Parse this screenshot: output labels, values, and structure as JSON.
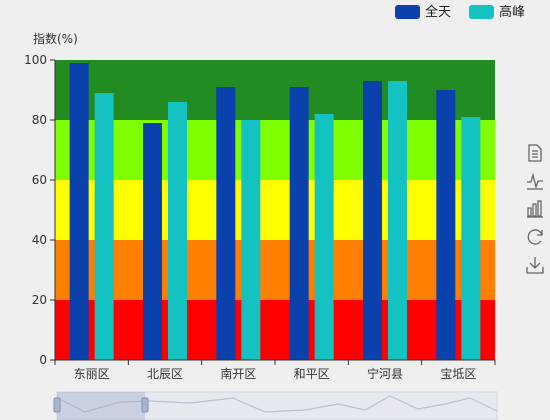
{
  "chart_data": {
    "type": "bar",
    "ylabel": "指数(%)",
    "ylim": [
      0,
      100
    ],
    "yticks": [
      0,
      20,
      40,
      60,
      80,
      100
    ],
    "categories": [
      "东丽区",
      "北辰区",
      "南开区",
      "和平区",
      "宁河县",
      "宝坻区"
    ],
    "series": [
      {
        "name": "全天",
        "color": "#0b41ad",
        "values": [
          99,
          79,
          91,
          91,
          93,
          90
        ]
      },
      {
        "name": "高峰",
        "color": "#14c3c1",
        "values": [
          89,
          86,
          80,
          82,
          93,
          81
        ]
      }
    ],
    "bands": [
      {
        "from": 0,
        "to": 20,
        "color": "#ff0000"
      },
      {
        "from": 20,
        "to": 40,
        "color": "#ff7f00"
      },
      {
        "from": 40,
        "to": 60,
        "color": "#ffff00"
      },
      {
        "from": 60,
        "to": 80,
        "color": "#7fff00"
      },
      {
        "from": 80,
        "to": 100,
        "color": "#228b22"
      }
    ],
    "legend_position": "top-right",
    "grid": false
  },
  "toolbox": {
    "icons": [
      "data-view-icon",
      "line-chart-icon",
      "bar-chart-icon",
      "restore-icon",
      "save-image-icon"
    ]
  },
  "data_zoom": {
    "start": 0,
    "end": 0.2
  }
}
